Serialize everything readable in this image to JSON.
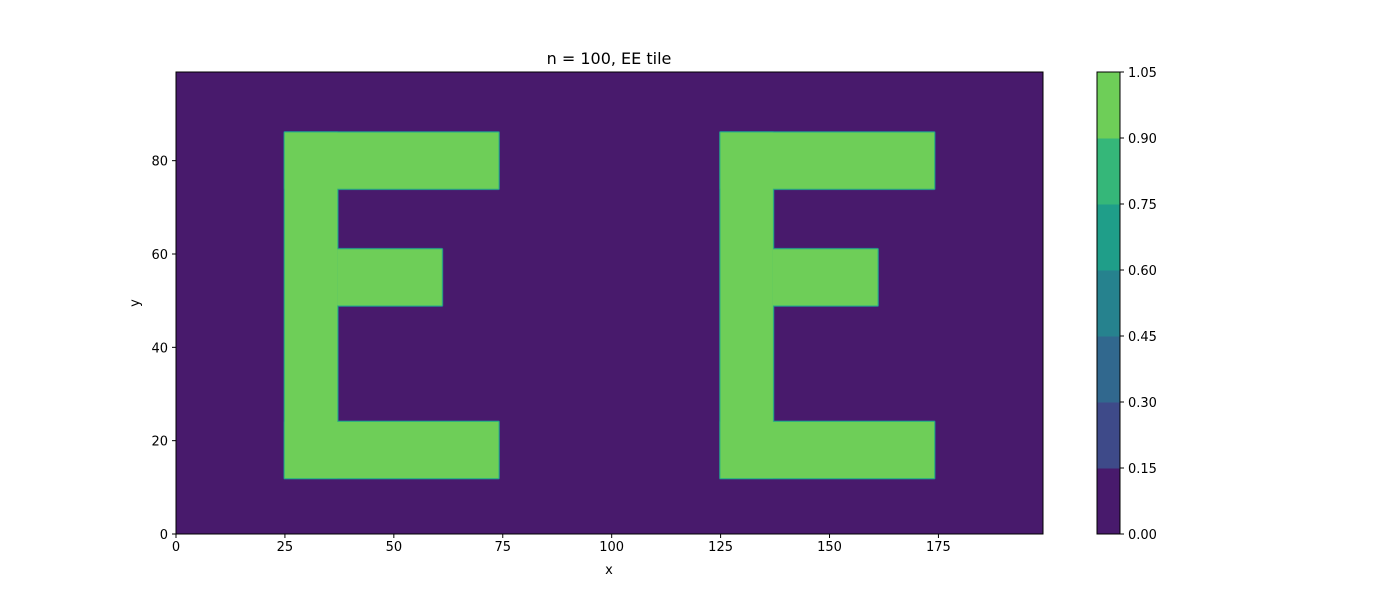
{
  "chart_data": {
    "type": "heatmap",
    "subtype": "filled-contour",
    "title": "n = 100, EE tile",
    "xlabel": "x",
    "ylabel": "y",
    "xlim": [
      0,
      199
    ],
    "ylim": [
      0,
      99
    ],
    "xticks": [
      0,
      25,
      50,
      75,
      100,
      125,
      150,
      175
    ],
    "yticks": [
      0,
      20,
      40,
      60,
      80
    ],
    "colorbar": {
      "levels": [
        0.0,
        0.15,
        0.3,
        0.45,
        0.6,
        0.75,
        0.9,
        1.05
      ],
      "tick_labels": [
        "0.00",
        "0.15",
        "0.30",
        "0.45",
        "0.60",
        "0.75",
        "0.90",
        "1.05"
      ],
      "colors": [
        "#481a6c",
        "#3e4a89",
        "#31688e",
        "#26828e",
        "#1f9e89",
        "#35b779",
        "#6ece58",
        "#d2e21b"
      ],
      "colormap": "viridis"
    },
    "background_value": 0,
    "shape_value": 1,
    "shapes": [
      {
        "letter": "E",
        "rects": [
          [
            25,
            12,
            74,
            24
          ],
          [
            25,
            12,
            37,
            86
          ],
          [
            25,
            74,
            74,
            86
          ],
          [
            37,
            49,
            61,
            61
          ]
        ]
      },
      {
        "letter": "E",
        "rects": [
          [
            125,
            12,
            174,
            24
          ],
          [
            125,
            12,
            137,
            86
          ],
          [
            125,
            74,
            174,
            86
          ],
          [
            137,
            49,
            161,
            61
          ]
        ]
      }
    ]
  }
}
